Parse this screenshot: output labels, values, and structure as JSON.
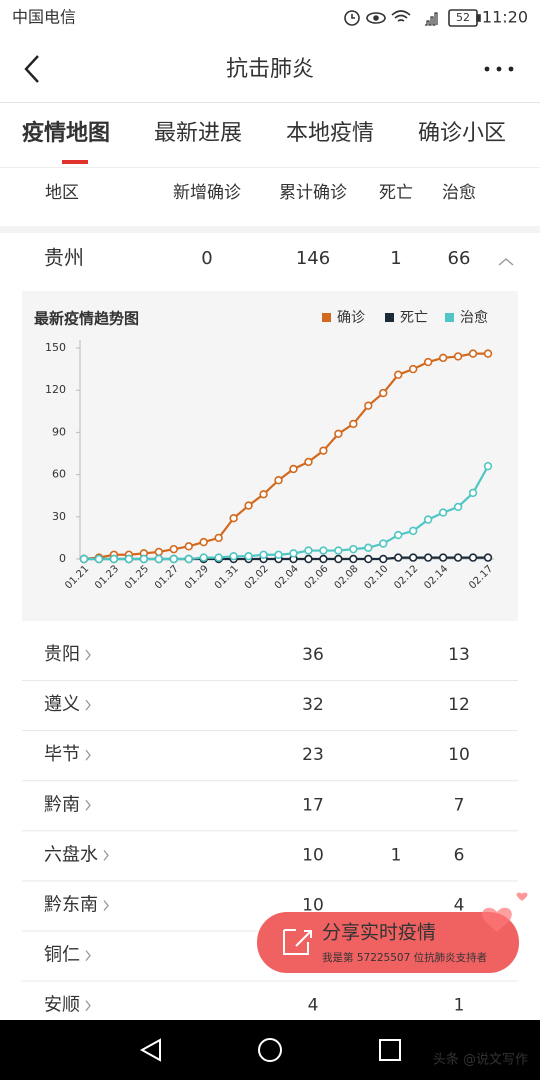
{
  "status_bar": {
    "carrier": "中国电信",
    "battery": 52,
    "time": "11:20"
  },
  "header": {
    "title": "抗击肺炎"
  },
  "tabs": [
    "疫情地图",
    "最新进展",
    "本地疫情",
    "确诊小区"
  ],
  "table": {
    "columns": [
      "地区",
      "新增确诊",
      "累计确诊",
      "死亡",
      "治愈"
    ],
    "province": {
      "name": "贵州",
      "new": 0,
      "total": 146,
      "deaths": 1,
      "cured": 66
    },
    "rows": [
      {
        "name": "贵阳",
        "total": 36,
        "cured": 13
      },
      {
        "name": "遵义",
        "total": 32,
        "cured": 12
      },
      {
        "name": "毕节",
        "total": 23,
        "cured": 10
      },
      {
        "name": "黔南",
        "total": 17,
        "cured": 7
      },
      {
        "name": "六盘水",
        "total": 10,
        "deaths": 1,
        "cured": 6
      },
      {
        "name": "黔东南",
        "total": 10,
        "cured": 4
      },
      {
        "name": "铜仁"
      },
      {
        "name": "安顺",
        "total": 4,
        "cured": 1
      }
    ]
  },
  "chart_data": {
    "type": "line",
    "title": "最新疫情趋势图",
    "categories": [
      "01.21",
      null,
      "01.23",
      null,
      "01.25",
      null,
      "01.27",
      null,
      "01.29",
      null,
      "01.31",
      null,
      "02.02",
      null,
      "02.04",
      null,
      "02.06",
      null,
      "02.08",
      null,
      "02.10",
      null,
      "02.12",
      null,
      "02.14",
      null,
      null,
      "02.17"
    ],
    "series": [
      {
        "name": "确诊",
        "color": "#d2691e",
        "values": [
          0,
          1,
          3,
          3,
          4,
          5,
          7,
          9,
          12,
          15,
          29,
          38,
          46,
          56,
          64,
          69,
          77,
          89,
          96,
          109,
          118,
          131,
          135,
          140,
          143,
          144,
          146,
          146
        ]
      },
      {
        "name": "死亡",
        "color": "#1c2b3a",
        "values": [
          0,
          0,
          0,
          0,
          0,
          0,
          0,
          0,
          0,
          0,
          0,
          0,
          0,
          0,
          0,
          0,
          0,
          0,
          0,
          0,
          0,
          1,
          1,
          1,
          1,
          1,
          1,
          1
        ]
      },
      {
        "name": "治愈",
        "color": "#4fc6c3",
        "values": [
          0,
          0,
          0,
          0,
          0,
          0,
          0,
          0,
          1,
          1,
          2,
          2,
          3,
          3,
          4,
          6,
          6,
          6,
          7,
          8,
          11,
          17,
          20,
          28,
          33,
          37,
          47,
          66
        ]
      }
    ],
    "ylim": [
      0,
      150
    ],
    "yticks": [
      0,
      30,
      60,
      90,
      120,
      150
    ],
    "legend": "top-right"
  },
  "share_button": {
    "label": "分享实时疫情",
    "note": "我是第 57225507 位抗肺炎支持者"
  },
  "watermark": "头条 @说文写作"
}
